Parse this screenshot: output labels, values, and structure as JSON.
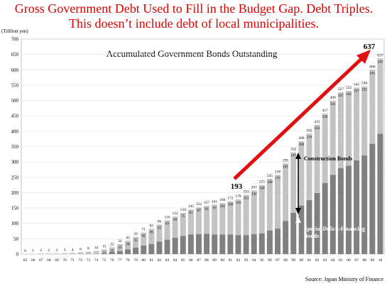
{
  "chart_data": {
    "type": "stacked_bar",
    "title": "Gross Government Debt Used to Fill in the Budget Gap.  Debt Triples.  This doesn’t include debt of local municipalities.",
    "subtitle": "Accumulated Government Bonds Outstanding",
    "y_label": "(Trillion yen)",
    "source": "Source: Japan Ministry of Finance",
    "annotations": [
      "193",
      "637",
      "Construction Bonds",
      "Special Deficit-Financing Bonds"
    ],
    "categories": [
      "65",
      "66",
      "67",
      "68",
      "69",
      "70",
      "71",
      "72",
      "73",
      "74",
      "75",
      "76",
      "77",
      "78",
      "79",
      "80",
      "81",
      "82",
      "83",
      "84",
      "85",
      "86",
      "87",
      "88",
      "89",
      "90",
      "91",
      "92",
      "93",
      "94",
      "95",
      "96",
      "97",
      "98",
      "99",
      "00",
      "01",
      "02",
      "03",
      "04",
      "05",
      "06",
      "07",
      "08",
      "09",
      "10"
    ],
    "series": [
      {
        "name": "Special Deficit-Financing Bonds",
        "color": "#808080",
        "values": [
          0,
          0,
          0,
          0,
          0,
          0,
          0,
          0,
          0,
          0,
          2,
          7,
          10,
          15,
          21,
          28,
          33,
          41,
          47,
          53,
          59,
          64,
          65,
          66,
          64,
          64,
          64,
          62,
          62,
          65,
          67,
          77,
          83,
          108,
          134,
          158,
          176,
          199,
          231,
          258,
          280,
          288,
          305,
          321,
          359,
          392
        ]
      },
      {
        "name": "Construction Bonds",
        "color": "#c3c3c3",
        "values": [
          0,
          1,
          2,
          2,
          2,
          3,
          4,
          6,
          8,
          10,
          13,
          15,
          22,
          28,
          35,
          42,
          49,
          55,
          63,
          69,
          75,
          81,
          87,
          91,
          97,
          102,
          108,
          116,
          131,
          142,
          158,
          168,
          175,
          187,
          197,
          209,
          216,
          222,
          226,
          241,
          247,
          243,
          237,
          225,
          241,
          245
        ]
      }
    ],
    "total_labels": [
      0,
      1,
      2,
      2,
      2,
      3,
      4,
      6,
      8,
      10,
      15,
      22,
      32,
      43,
      56,
      71,
      82,
      96,
      110,
      122,
      134,
      145,
      152,
      157,
      161,
      166,
      172,
      178,
      193,
      207,
      225,
      245,
      258,
      295,
      332,
      368,
      392,
      421,
      457,
      499,
      527,
      532,
      541,
      546,
      600,
      637
    ],
    "ylim": [
      0,
      700
    ],
    "yticks": [
      0,
      50,
      100,
      150,
      200,
      250,
      300,
      350,
      400,
      450,
      500,
      550,
      600,
      650,
      700
    ],
    "grid": true
  }
}
